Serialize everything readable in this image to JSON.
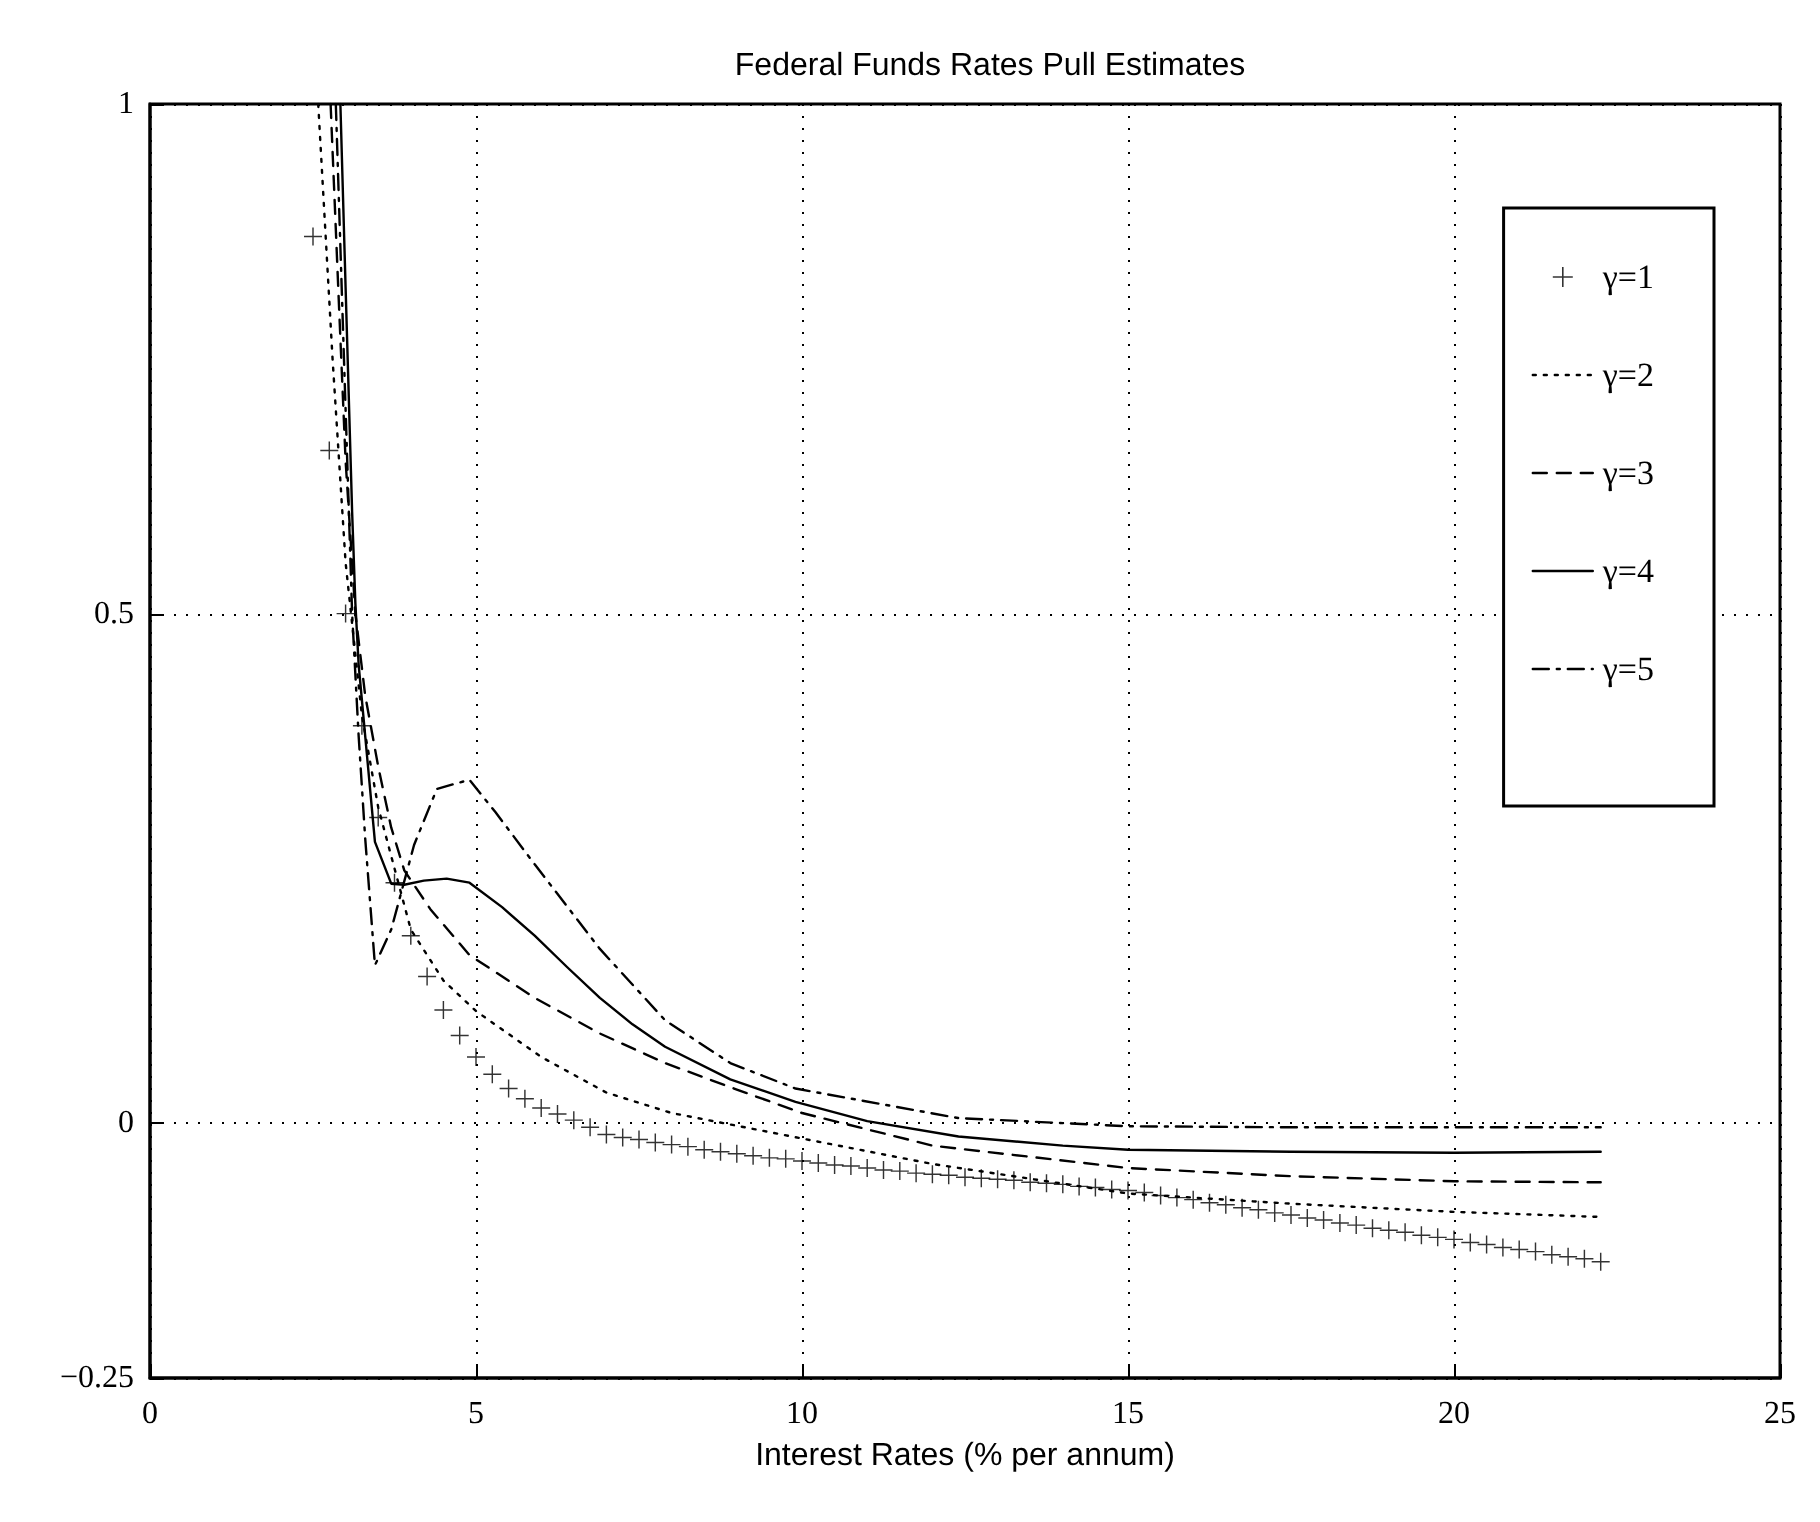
{
  "chart_data": {
    "type": "line",
    "title": "Federal Funds Rates Pull Estimates",
    "xlabel": "Interest Rates (% per annum)",
    "xlim": [
      0,
      25
    ],
    "xticks": [
      0,
      5,
      10,
      15,
      20,
      25
    ],
    "ylim": [
      -0.25,
      1
    ],
    "yticks": [
      -0.25,
      0,
      0.5,
      1
    ],
    "grid": true,
    "legend": "top right",
    "series": [
      {
        "name": "γ=1",
        "type": "scatter",
        "marker": "cross",
        "color": "#000000",
        "x": [
          2.5,
          2.75,
          3,
          3.25,
          3.5,
          3.75,
          4,
          4.25,
          4.5,
          4.75,
          5,
          5.25,
          5.5,
          5.75,
          6,
          6.25,
          6.5,
          6.75,
          7,
          7.25,
          7.5,
          7.75,
          8,
          8.25,
          8.5,
          8.75,
          9,
          9.25,
          9.5,
          9.75,
          10,
          10.25,
          10.5,
          10.75,
          11,
          11.25,
          11.5,
          11.75,
          12,
          12.25,
          12.5,
          12.75,
          13,
          13.25,
          13.5,
          13.75,
          14,
          14.25,
          14.5,
          14.75,
          15,
          15.25,
          15.5,
          15.75,
          16,
          16.25,
          16.5,
          16.75,
          17,
          17.25,
          17.5,
          17.75,
          18,
          18.25,
          18.5,
          18.75,
          19,
          19.25,
          19.5,
          19.75,
          20,
          20.25,
          20.5,
          20.75,
          21,
          21.25,
          21.5,
          21.75,
          22,
          22.25
        ],
        "values": [
          0.87,
          0.66,
          0.5,
          0.39,
          0.3,
          0.236,
          0.184,
          0.144,
          0.111,
          0.086,
          0.065,
          0.048,
          0.034,
          0.024,
          0.015,
          0.009,
          0.003,
          -0.004,
          -0.011,
          -0.014,
          -0.016,
          -0.019,
          -0.021,
          -0.023,
          -0.026,
          -0.028,
          -0.03,
          -0.032,
          -0.034,
          -0.035,
          -0.037,
          -0.039,
          -0.041,
          -0.042,
          -0.044,
          -0.046,
          -0.047,
          -0.049,
          -0.05,
          -0.051,
          -0.053,
          -0.054,
          -0.055,
          -0.056,
          -0.058,
          -0.059,
          -0.06,
          -0.062,
          -0.063,
          -0.065,
          -0.066,
          -0.068,
          -0.071,
          -0.073,
          -0.075,
          -0.078,
          -0.08,
          -0.083,
          -0.085,
          -0.088,
          -0.09,
          -0.093,
          -0.095,
          -0.098,
          -0.1,
          -0.103,
          -0.105,
          -0.107,
          -0.11,
          -0.112,
          -0.114,
          -0.117,
          -0.119,
          -0.122,
          -0.124,
          -0.126,
          -0.129,
          -0.131,
          -0.133,
          -0.136
        ]
      },
      {
        "name": "γ=2",
        "line_style": "dotted",
        "color": "#000000",
        "x": [
          2.58,
          2.8,
          3,
          3.25,
          3.5,
          3.75,
          4,
          4.5,
          5,
          6,
          7,
          8,
          10,
          12,
          15,
          17.5,
          20,
          22.25
        ],
        "values": [
          1,
          0.75,
          0.55,
          0.4,
          0.31,
          0.25,
          0.19,
          0.14,
          0.11,
          0.065,
          0.03,
          0.01,
          -0.015,
          -0.04,
          -0.069,
          -0.079,
          -0.087,
          -0.092
        ]
      },
      {
        "name": "γ=3",
        "line_style": "dashed",
        "color": "#000000",
        "x": [
          2.77,
          2.9,
          3,
          3.15,
          3.3,
          3.5,
          3.7,
          3.9,
          4.3,
          4.9,
          5.9,
          6.9,
          7.9,
          9,
          10,
          12,
          15,
          17.5,
          20,
          22.25
        ],
        "values": [
          1,
          0.8,
          0.65,
          0.5,
          0.42,
          0.35,
          0.29,
          0.248,
          0.21,
          0.165,
          0.123,
          0.088,
          0.059,
          0.033,
          0.01,
          -0.022,
          -0.044,
          -0.052,
          -0.057,
          -0.058
        ]
      },
      {
        "name": "γ=4",
        "line_style": "solid",
        "color": "#000000",
        "x": [
          2.92,
          3,
          3.1,
          3.15,
          3.2,
          3.45,
          3.7,
          3.9,
          4.2,
          4.55,
          4.9,
          5.4,
          5.9,
          6.4,
          6.9,
          7.4,
          7.9,
          8.9,
          9.9,
          11,
          12.4,
          14,
          15,
          17.5,
          20,
          22.25
        ],
        "values": [
          1,
          0.82,
          0.6,
          0.51,
          0.45,
          0.276,
          0.235,
          0.234,
          0.238,
          0.24,
          0.236,
          0.212,
          0.184,
          0.153,
          0.123,
          0.097,
          0.075,
          0.043,
          0.021,
          0.002,
          -0.013,
          -0.022,
          -0.026,
          -0.028,
          -0.029,
          -0.028
        ]
      },
      {
        "name": "γ=5",
        "line_style": "dashdot",
        "color": "#000000",
        "x": [
          2.85,
          3,
          3.1,
          3.2,
          3.3,
          3.45,
          3.7,
          4.05,
          4.4,
          4.9,
          5.3,
          5.9,
          6.9,
          7.9,
          8.9,
          9.9,
          12.4,
          15,
          17.5,
          20,
          22.25
        ],
        "values": [
          1,
          0.7,
          0.5,
          0.38,
          0.28,
          0.155,
          0.19,
          0.273,
          0.328,
          0.337,
          0.305,
          0.254,
          0.171,
          0.101,
          0.059,
          0.034,
          0.005,
          -0.003,
          -0.004,
          -0.004,
          -0.004
        ]
      }
    ]
  }
}
